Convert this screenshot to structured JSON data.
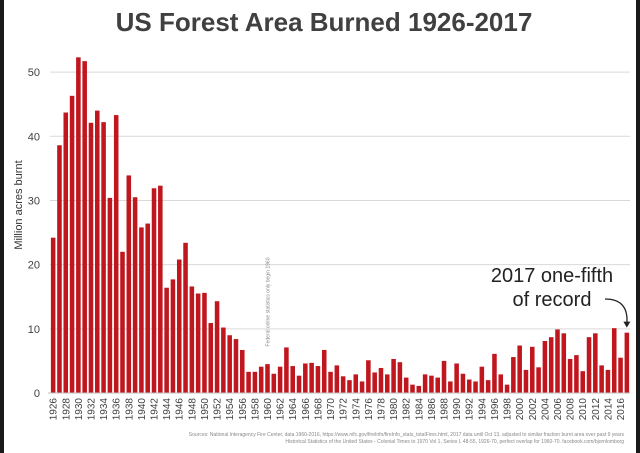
{
  "chart_data": {
    "type": "bar",
    "title": "US Forest Area Burned 1926-2017",
    "ylabel": "Million acres burnt",
    "xlabel": "",
    "ylim": [
      0,
      55
    ],
    "yticks": [
      0,
      10,
      20,
      30,
      40,
      50
    ],
    "grid": true,
    "bar_color": "#c0161e",
    "x": [
      1926,
      1927,
      1928,
      1929,
      1930,
      1931,
      1932,
      1933,
      1934,
      1935,
      1936,
      1937,
      1938,
      1939,
      1940,
      1941,
      1942,
      1943,
      1944,
      1945,
      1946,
      1947,
      1948,
      1949,
      1950,
      1951,
      1952,
      1953,
      1954,
      1955,
      1956,
      1957,
      1958,
      1959,
      1960,
      1961,
      1962,
      1963,
      1964,
      1965,
      1966,
      1967,
      1968,
      1969,
      1970,
      1971,
      1972,
      1973,
      1974,
      1975,
      1976,
      1977,
      1978,
      1979,
      1980,
      1981,
      1982,
      1983,
      1984,
      1985,
      1986,
      1987,
      1988,
      1989,
      1990,
      1991,
      1992,
      1993,
      1994,
      1995,
      1996,
      1997,
      1998,
      1999,
      2000,
      2001,
      2002,
      2003,
      2004,
      2005,
      2006,
      2007,
      2008,
      2009,
      2010,
      2011,
      2012,
      2013,
      2014,
      2015,
      2016,
      2017
    ],
    "values": [
      24.2,
      38.6,
      43.7,
      46.3,
      52.3,
      51.7,
      42.1,
      44.0,
      42.2,
      30.4,
      43.3,
      22.0,
      33.9,
      30.5,
      25.8,
      26.4,
      31.9,
      32.3,
      16.4,
      17.7,
      20.8,
      23.4,
      16.6,
      15.5,
      15.6,
      10.9,
      14.3,
      10.2,
      9.0,
      8.4,
      6.7,
      3.3,
      3.3,
      4.1,
      4.5,
      3.0,
      4.1,
      7.1,
      4.2,
      2.7,
      4.6,
      4.7,
      4.2,
      6.7,
      3.3,
      4.3,
      2.6,
      2.0,
      2.9,
      1.8,
      5.1,
      3.2,
      3.9,
      2.9,
      5.3,
      4.8,
      2.4,
      1.3,
      1.1,
      2.9,
      2.7,
      2.4,
      5.0,
      1.8,
      4.6,
      3.0,
      2.1,
      1.8,
      4.1,
      2.0,
      6.1,
      2.9,
      1.3,
      5.6,
      7.4,
      3.6,
      7.2,
      4.0,
      8.1,
      8.7,
      9.9,
      9.3,
      5.3,
      5.9,
      3.4,
      8.7,
      9.3,
      4.3,
      3.6,
      10.1,
      5.5,
      9.4
    ],
    "xtick_labels": [
      "1926",
      "1928",
      "1930",
      "1932",
      "1934",
      "1936",
      "1938",
      "1940",
      "1942",
      "1944",
      "1946",
      "1948",
      "1950",
      "1952",
      "1954",
      "1956",
      "1958",
      "1960",
      "1962",
      "1964",
      "1966",
      "1968",
      "1970",
      "1972",
      "1974",
      "1976",
      "1978",
      "1980",
      "1982",
      "1984",
      "1986",
      "1988",
      "1990",
      "1992",
      "1994",
      "1996",
      "1998",
      "2000",
      "2002",
      "2004",
      "2006",
      "2008",
      "2010",
      "2012",
      "2014",
      "2016"
    ],
    "annotations": [
      {
        "text_line1": "2017 one-fifth",
        "text_line2": "of record",
        "target_x": 2017
      },
      {
        "text": "Federal online statistics only begin 1960",
        "orientation": "vertical",
        "at_x": 1960
      }
    ],
    "source_lines": [
      "Sources: National Interagency Fire Center, data 1960-2016, https://www.nifc.gov/fireInfo/fireInfo_stats_totalFires.html, 2017 data until Oct 13, adjusted to similar fraction burnt area over past 9 years",
      "Historical Statistics of the United States - Colonial Times to 1970 Vol 1, Series L 48-55, 1926-70, perfect overlap for 1960-70. facebook.com/bjornlomborg"
    ]
  }
}
